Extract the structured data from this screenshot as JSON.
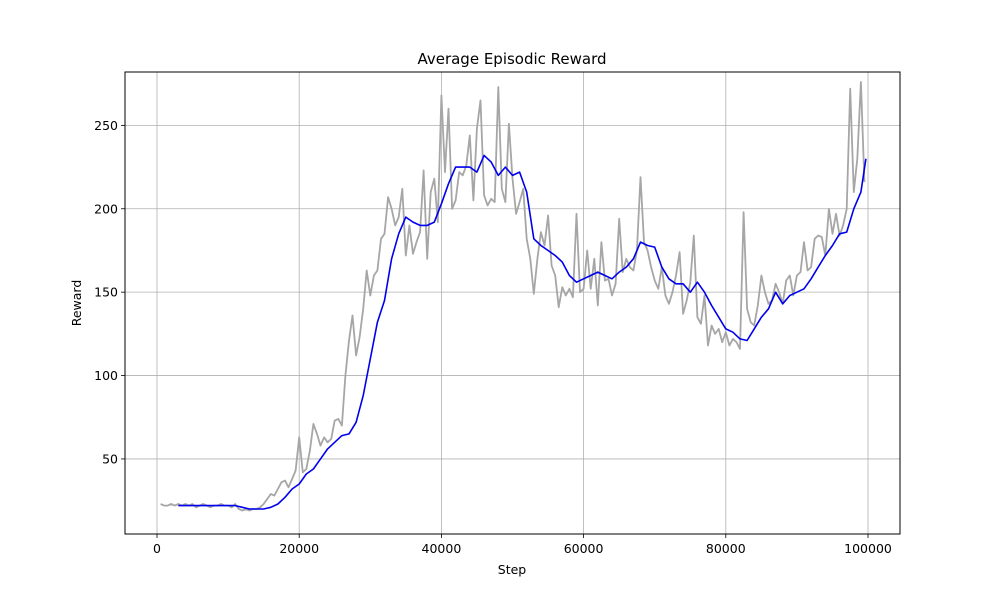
{
  "chart_data": {
    "type": "line",
    "title": "Average Episodic Reward",
    "xlabel": "Step",
    "ylabel": "Reward",
    "xlim": [
      -4500,
      104500
    ],
    "ylim": [
      5,
      282
    ],
    "xticks": [
      0,
      20000,
      40000,
      60000,
      80000,
      100000
    ],
    "xtick_labels": [
      "0",
      "20000",
      "40000",
      "60000",
      "80000",
      "100000"
    ],
    "yticks": [
      50,
      100,
      150,
      200,
      250
    ],
    "ytick_labels": [
      "50",
      "100",
      "150",
      "200",
      "250"
    ],
    "grid": true,
    "legend": "none",
    "colors": {
      "raw": "#a6a6a6",
      "smoothed": "#0000ee",
      "grid": "#b0b0b0",
      "axes": "#000000"
    },
    "series": [
      {
        "color": "#a6a6a6",
        "x": [
          500,
          1000,
          1500,
          2000,
          2500,
          3000,
          3500,
          4000,
          4500,
          5000,
          5500,
          6000,
          6500,
          7000,
          7500,
          8000,
          8500,
          9000,
          9500,
          10000,
          10500,
          11000,
          11500,
          12000,
          12500,
          13000,
          13500,
          14000,
          14500,
          15000,
          15500,
          16000,
          16500,
          17000,
          17500,
          18000,
          18500,
          19000,
          19500,
          20000,
          20500,
          21000,
          21500,
          22000,
          22500,
          23000,
          23500,
          24000,
          24500,
          25000,
          25500,
          26000,
          26500,
          27000,
          27500,
          28000,
          28500,
          29000,
          29500,
          30000,
          30500,
          31000,
          31500,
          32000,
          32500,
          33000,
          33500,
          34000,
          34500,
          35000,
          35500,
          36000,
          36500,
          37000,
          37500,
          38000,
          38500,
          39000,
          39500,
          40000,
          40500,
          41000,
          41500,
          42000,
          42500,
          43000,
          43500,
          44000,
          44500,
          45000,
          45500,
          46000,
          46500,
          47000,
          47500,
          48000,
          48500,
          49000,
          49500,
          50000,
          50500,
          51000,
          51500,
          52000,
          52500,
          53000,
          53500,
          54000,
          54500,
          55000,
          55500,
          56000,
          56500,
          57000,
          57500,
          58000,
          58500,
          59000,
          59500,
          60000,
          60500,
          61000,
          61500,
          62000,
          62500,
          63000,
          63500,
          64000,
          64500,
          65000,
          65500,
          66000,
          66500,
          67000,
          67500,
          68000,
          68500,
          69000,
          69500,
          70000,
          70500,
          71000,
          71500,
          72000,
          72500,
          73000,
          73500,
          74000,
          74500,
          75000,
          75500,
          76000,
          76500,
          77000,
          77500,
          78000,
          78500,
          79000,
          79500,
          80000,
          80500,
          81000,
          81500,
          82000,
          82500,
          83000,
          83500,
          84000,
          84500,
          85000,
          85500,
          86000,
          86500,
          87000,
          87500,
          88000,
          88500,
          89000,
          89500,
          90000,
          90500,
          91000,
          91500,
          92000,
          92500,
          93000,
          93500,
          94000,
          94500,
          95000,
          95500,
          96000,
          96500,
          97000,
          97500,
          98000,
          98500,
          99000,
          99500
        ],
        "y": [
          23,
          22,
          22,
          23,
          22,
          23,
          22,
          23,
          22,
          23,
          21,
          22,
          23,
          22,
          21,
          22,
          22,
          23,
          22,
          22,
          21,
          23,
          20,
          19,
          20,
          19,
          20,
          20,
          21,
          23,
          26,
          29,
          28,
          32,
          36,
          37,
          33,
          38,
          43,
          63,
          42,
          44,
          55,
          71,
          65,
          58,
          63,
          60,
          62,
          73,
          74,
          70,
          100,
          121,
          136,
          112,
          123,
          140,
          163,
          148,
          160,
          163,
          182,
          185,
          207,
          200,
          190,
          195,
          212,
          172,
          190,
          173,
          180,
          186,
          223,
          170,
          210,
          218,
          192,
          268,
          222,
          260,
          200,
          205,
          222,
          220,
          226,
          244,
          205,
          248,
          265,
          208,
          202,
          206,
          204,
          273,
          212,
          204,
          251,
          218,
          197,
          204,
          212,
          182,
          170,
          149,
          170,
          186,
          178,
          196,
          166,
          160,
          141,
          153,
          148,
          152,
          147,
          197,
          150,
          152,
          175,
          152,
          170,
          142,
          180,
          157,
          158,
          148,
          155,
          194,
          162,
          170,
          165,
          163,
          175,
          219,
          180,
          175,
          165,
          157,
          152,
          165,
          148,
          143,
          150,
          160,
          174,
          137,
          145,
          156,
          184,
          135,
          131,
          148,
          118,
          130,
          125,
          128,
          120,
          126,
          118,
          122,
          120,
          116,
          198,
          140,
          132,
          130,
          142,
          160,
          150,
          143,
          145,
          155,
          150,
          143,
          157,
          160,
          148,
          160,
          162,
          180,
          163,
          165,
          182,
          184,
          183,
          172,
          200,
          185,
          197,
          184,
          190,
          200,
          272,
          210,
          230,
          276,
          216
        ]
      },
      {
        "color": "#0000ee",
        "x": [
          3000,
          4000,
          5000,
          6000,
          7000,
          8000,
          9000,
          10000,
          11000,
          12000,
          13000,
          14000,
          15000,
          16000,
          17000,
          18000,
          19000,
          20000,
          21000,
          22000,
          23000,
          24000,
          25000,
          26000,
          27000,
          28000,
          29000,
          30000,
          31000,
          32000,
          33000,
          34000,
          35000,
          36000,
          37000,
          38000,
          39000,
          40000,
          41000,
          42000,
          43000,
          44000,
          45000,
          46000,
          47000,
          48000,
          49000,
          50000,
          51000,
          52000,
          53000,
          54000,
          55000,
          56000,
          57000,
          58000,
          59000,
          60000,
          61000,
          62000,
          63000,
          64000,
          65000,
          66000,
          67000,
          68000,
          69000,
          70000,
          71000,
          72000,
          73000,
          74000,
          75000,
          76000,
          77000,
          78000,
          79000,
          80000,
          81000,
          82000,
          83000,
          84000,
          85000,
          86000,
          87000,
          88000,
          89000,
          90000,
          91000,
          92000,
          93000,
          94000,
          95000,
          96000,
          97000,
          98000,
          99000,
          99700
        ],
        "y": [
          22,
          22,
          22,
          22,
          22,
          22,
          22,
          22,
          22,
          21,
          20,
          20,
          20,
          21,
          23,
          27,
          32,
          35,
          41,
          44,
          50,
          56,
          60,
          64,
          65,
          72,
          88,
          110,
          132,
          145,
          170,
          185,
          195,
          192,
          190,
          190,
          192,
          203,
          215,
          225,
          225,
          225,
          222,
          232,
          228,
          220,
          225,
          220,
          222,
          210,
          182,
          178,
          175,
          172,
          168,
          160,
          156,
          158,
          160,
          162,
          160,
          158,
          162,
          165,
          170,
          180,
          178,
          177,
          165,
          158,
          155,
          155,
          150,
          156,
          150,
          142,
          135,
          128,
          126,
          122,
          121,
          128,
          135,
          140,
          150,
          143,
          148,
          150,
          152,
          158,
          165,
          172,
          178,
          185,
          186,
          200,
          210,
          230
        ]
      }
    ]
  }
}
